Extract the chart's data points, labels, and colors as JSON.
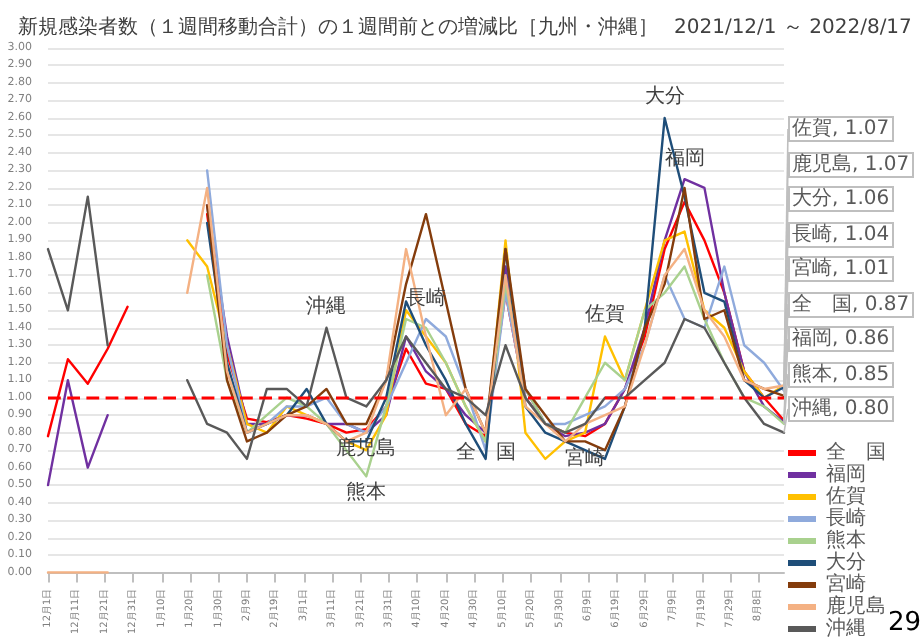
{
  "chart_data": {
    "type": "line",
    "title": "新規感染者数（１週間移動合計）の１週間前との増減比［九州・沖縄］",
    "subtitle": "2021/12/1 ～ 2022/8/17",
    "x": [
      "2021-12-01",
      "2021-12-08",
      "2021-12-15",
      "2021-12-22",
      "2021-12-29",
      "2022-01-05",
      "2022-01-12",
      "2022-01-19",
      "2022-01-26",
      "2022-02-02",
      "2022-02-09",
      "2022-02-16",
      "2022-02-23",
      "2022-03-02",
      "2022-03-09",
      "2022-03-16",
      "2022-03-23",
      "2022-03-30",
      "2022-04-06",
      "2022-04-13",
      "2022-04-20",
      "2022-04-27",
      "2022-05-04",
      "2022-05-11",
      "2022-05-18",
      "2022-05-25",
      "2022-06-01",
      "2022-06-08",
      "2022-06-15",
      "2022-06-22",
      "2022-06-29",
      "2022-07-06",
      "2022-07-13",
      "2022-07-20",
      "2022-07-27",
      "2022-08-03",
      "2022-08-10",
      "2022-08-17"
    ],
    "series": [
      {
        "name": "全　国",
        "color": "#ff0000",
        "values": [
          0.78,
          1.22,
          1.08,
          1.28,
          1.52,
          null,
          null,
          null,
          2.05,
          1.25,
          0.88,
          0.86,
          0.9,
          0.88,
          0.85,
          0.8,
          0.82,
          0.95,
          1.28,
          1.08,
          1.05,
          0.85,
          0.78,
          1.6,
          1.0,
          0.85,
          0.8,
          0.78,
          0.85,
          1.05,
          1.35,
          1.85,
          2.12,
          1.9,
          1.6,
          1.15,
          1.0,
          0.87
        ]
      },
      {
        "name": "福岡",
        "color": "#7030a0",
        "values": [
          0.5,
          1.1,
          0.6,
          0.9,
          null,
          null,
          null,
          null,
          2.1,
          1.35,
          0.85,
          0.85,
          0.9,
          0.9,
          0.85,
          0.85,
          0.8,
          0.9,
          1.35,
          1.15,
          1.05,
          0.9,
          0.8,
          1.75,
          1.05,
          0.85,
          0.78,
          0.8,
          0.85,
          1.05,
          1.4,
          1.9,
          2.25,
          2.2,
          1.6,
          1.15,
          0.95,
          0.86
        ]
      },
      {
        "name": "佐賀",
        "color": "#ffc000",
        "values": [
          null,
          null,
          null,
          null,
          null,
          null,
          null,
          1.9,
          1.75,
          1.3,
          0.85,
          0.8,
          0.95,
          0.9,
          0.85,
          0.75,
          0.7,
          0.9,
          1.5,
          1.35,
          1.2,
          0.95,
          0.75,
          1.9,
          0.8,
          0.65,
          0.75,
          0.8,
          1.35,
          1.1,
          1.5,
          1.9,
          1.95,
          1.5,
          1.4,
          1.15,
          1.0,
          1.07
        ]
      },
      {
        "name": "長崎",
        "color": "#8faadc",
        "values": [
          null,
          null,
          null,
          null,
          null,
          null,
          null,
          null,
          2.3,
          1.3,
          0.8,
          0.85,
          0.95,
          0.95,
          1.0,
          0.85,
          0.8,
          0.95,
          1.2,
          1.45,
          1.35,
          1.05,
          0.7,
          1.6,
          1.0,
          0.85,
          0.85,
          0.9,
          0.95,
          1.05,
          1.3,
          1.7,
          1.45,
          1.4,
          1.75,
          1.3,
          1.2,
          1.04
        ]
      },
      {
        "name": "熊本",
        "color": "#a9d18e",
        "values": [
          null,
          null,
          null,
          null,
          null,
          null,
          null,
          null,
          1.7,
          1.1,
          0.8,
          0.9,
          1.0,
          0.95,
          0.85,
          0.7,
          0.55,
          0.95,
          1.45,
          1.4,
          1.2,
          0.95,
          0.75,
          1.65,
          1.05,
          0.85,
          0.8,
          1.0,
          1.2,
          1.1,
          1.5,
          1.6,
          1.75,
          1.45,
          1.2,
          1.0,
          0.95,
          0.85
        ]
      },
      {
        "name": "大分",
        "color": "#1f4e79",
        "values": [
          null,
          null,
          null,
          null,
          null,
          null,
          null,
          null,
          2.0,
          1.2,
          0.8,
          0.85,
          0.9,
          1.05,
          0.85,
          0.75,
          0.75,
          1.0,
          1.55,
          1.3,
          1.1,
          0.85,
          0.65,
          1.85,
          0.95,
          0.8,
          0.75,
          0.7,
          0.65,
          0.95,
          1.4,
          2.6,
          2.15,
          1.6,
          1.55,
          1.1,
          1.0,
          1.06
        ]
      },
      {
        "name": "宮崎",
        "color": "#843c0c",
        "values": [
          null,
          null,
          null,
          null,
          null,
          null,
          null,
          null,
          2.1,
          1.1,
          0.75,
          0.8,
          0.9,
          0.95,
          1.05,
          0.85,
          0.85,
          1.1,
          1.65,
          2.05,
          1.55,
          1.05,
          0.8,
          1.85,
          1.05,
          0.9,
          0.75,
          0.75,
          0.7,
          0.95,
          1.4,
          1.65,
          2.2,
          1.45,
          1.5,
          1.1,
          1.05,
          1.01
        ]
      },
      {
        "name": "鹿児島",
        "color": "#f4b183",
        "values": [
          0,
          0,
          0,
          0,
          null,
          null,
          null,
          1.6,
          2.2,
          1.15,
          0.8,
          0.85,
          0.9,
          0.9,
          0.85,
          0.75,
          0.8,
          1.1,
          1.85,
          1.35,
          0.9,
          1.05,
          0.8,
          1.7,
          0.95,
          0.85,
          0.75,
          0.85,
          0.9,
          0.95,
          1.3,
          1.7,
          1.85,
          1.5,
          1.35,
          1.1,
          1.05,
          1.07
        ]
      },
      {
        "name": "沖縄",
        "color": "#595959",
        "values": [
          1.85,
          1.5,
          2.15,
          1.3,
          null,
          null,
          null,
          1.1,
          0.85,
          0.8,
          0.65,
          1.05,
          1.05,
          0.95,
          1.4,
          1.0,
          0.95,
          1.1,
          1.35,
          1.2,
          1.05,
          1.0,
          0.9,
          1.3,
          1.0,
          0.85,
          0.8,
          0.85,
          1.0,
          1.0,
          1.1,
          1.2,
          1.45,
          1.4,
          1.2,
          1.0,
          0.85,
          0.8
        ]
      }
    ],
    "xlim": [
      "2021-12-01",
      "2022-08-17"
    ],
    "xticks": [
      {
        "value": "2021-12-01",
        "label": "12月1日"
      },
      {
        "value": "2021-12-11",
        "label": "12月11日"
      },
      {
        "value": "2021-12-21",
        "label": "12月21日"
      },
      {
        "value": "2021-12-31",
        "label": "12月31日"
      },
      {
        "value": "2022-01-10",
        "label": "1月10日"
      },
      {
        "value": "2022-01-20",
        "label": "1月20日"
      },
      {
        "value": "2022-01-30",
        "label": "1月30日"
      },
      {
        "value": "2022-02-09",
        "label": "2月9日"
      },
      {
        "value": "2022-02-19",
        "label": "2月19日"
      },
      {
        "value": "2022-03-01",
        "label": "3月1日"
      },
      {
        "value": "2022-03-11",
        "label": "3月11日"
      },
      {
        "value": "2022-03-21",
        "label": "3月21日"
      },
      {
        "value": "2022-03-31",
        "label": "3月31日"
      },
      {
        "value": "2022-04-10",
        "label": "4月10日"
      },
      {
        "value": "2022-04-20",
        "label": "4月20日"
      },
      {
        "value": "2022-04-30",
        "label": "4月30日"
      },
      {
        "value": "2022-05-10",
        "label": "5月10日"
      },
      {
        "value": "2022-05-20",
        "label": "5月20日"
      },
      {
        "value": "2022-05-30",
        "label": "5月30日"
      },
      {
        "value": "2022-06-09",
        "label": "6月9日"
      },
      {
        "value": "2022-06-19",
        "label": "6月19日"
      },
      {
        "value": "2022-06-29",
        "label": "6月29日"
      },
      {
        "value": "2022-07-09",
        "label": "7月9日"
      },
      {
        "value": "2022-07-19",
        "label": "7月19日"
      },
      {
        "value": "2022-07-29",
        "label": "7月29日"
      },
      {
        "value": "2022-08-08",
        "label": "8月8日"
      }
    ],
    "ylim": [
      0,
      3
    ],
    "yticks": [
      {
        "value": 0,
        "label": "0.00"
      },
      {
        "value": 0.1,
        "label": "0.10"
      },
      {
        "value": 0.2,
        "label": "0.20"
      },
      {
        "value": 0.3,
        "label": "0.30"
      },
      {
        "value": 0.4,
        "label": "0.40"
      },
      {
        "value": 0.5,
        "label": "0.50"
      },
      {
        "value": 0.6,
        "label": "0.60"
      },
      {
        "value": 0.7,
        "label": "0.70"
      },
      {
        "value": 0.8,
        "label": "0.80"
      },
      {
        "value": 0.9,
        "label": "0.90"
      },
      {
        "value": 1,
        "label": "1.00"
      },
      {
        "value": 1.1,
        "label": "1.10"
      },
      {
        "value": 1.2,
        "label": "1.20"
      },
      {
        "value": 1.3,
        "label": "1.30"
      },
      {
        "value": 1.4,
        "label": "1.40"
      },
      {
        "value": 1.5,
        "label": "1.50"
      },
      {
        "value": 1.6,
        "label": "1.60"
      },
      {
        "value": 1.7,
        "label": "1.70"
      },
      {
        "value": 1.8,
        "label": "1.80"
      },
      {
        "value": 1.9,
        "label": "1.90"
      },
      {
        "value": 2,
        "label": "2.00"
      },
      {
        "value": 2.1,
        "label": "2.10"
      },
      {
        "value": 2.2,
        "label": "2.20"
      },
      {
        "value": 2.3,
        "label": "2.30"
      },
      {
        "value": 2.4,
        "label": "2.40"
      },
      {
        "value": 2.5,
        "label": "2.50"
      },
      {
        "value": 2.6,
        "label": "2.60"
      },
      {
        "value": 2.7,
        "label": "2.70"
      },
      {
        "value": 2.8,
        "label": "2.80"
      },
      {
        "value": 2.9,
        "label": "2.90"
      },
      {
        "value": 3,
        "label": "3.00"
      }
    ],
    "ref_lines": [
      {
        "axis": "y",
        "value": 1,
        "color": "#ff0000",
        "line_style": "dashed"
      }
    ],
    "grid": "y",
    "legend": "bottom right",
    "annotations": [
      {
        "text": "沖縄",
        "x": "2022-03-09",
        "y": 1.4
      },
      {
        "text": "長崎",
        "x": "2022-04-13",
        "y": 1.45
      },
      {
        "text": "鹿児島",
        "x": "2022-03-23",
        "y": 0.8
      },
      {
        "text": "熊本",
        "x": "2022-03-23",
        "y": 0.55
      },
      {
        "text": "全　国",
        "x": "2022-05-04",
        "y": 0.78
      },
      {
        "text": "佐賀",
        "x": "2022-06-15",
        "y": 1.35
      },
      {
        "text": "宮崎",
        "x": "2022-06-08",
        "y": 0.75
      },
      {
        "text": "大分",
        "x": "2022-07-06",
        "y": 2.6
      },
      {
        "text": "福岡",
        "x": "2022-07-13",
        "y": 2.25
      },
      {
        "text": "佐賀, 1.07",
        "x": "2022-08-17",
        "y": 1.07
      },
      {
        "text": "鹿児島, 1.07",
        "x": "2022-08-17",
        "y": 1.07
      },
      {
        "text": "大分, 1.06",
        "x": "2022-08-17",
        "y": 1.06
      },
      {
        "text": "長崎, 1.04",
        "x": "2022-08-17",
        "y": 1.04
      },
      {
        "text": "宮崎, 1.01",
        "x": "2022-08-17",
        "y": 1.01
      },
      {
        "text": "全　国, 0.87",
        "x": "2022-08-17",
        "y": 0.87
      },
      {
        "text": "福岡, 0.86",
        "x": "2022-08-17",
        "y": 0.86
      },
      {
        "text": "熊本, 0.85",
        "x": "2022-08-17",
        "y": 0.85
      },
      {
        "text": "沖縄, 0.80",
        "x": "2022-08-17",
        "y": 0.8
      },
      "29"
    ]
  }
}
